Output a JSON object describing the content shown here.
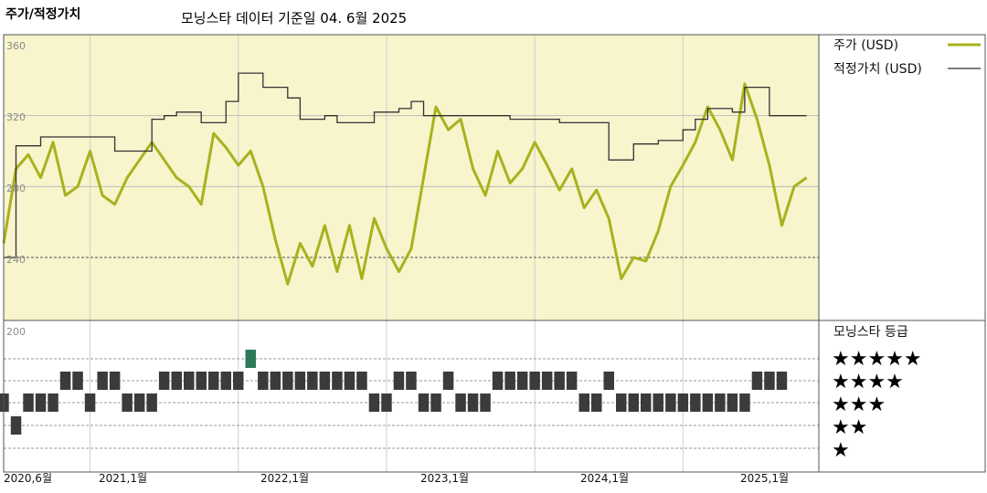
{
  "header": {
    "title": "주가/적정가치",
    "subtitle": "모닝스타 데이터 기준일 04. 6월 2025"
  },
  "colors": {
    "price": "#a8b21e",
    "fair_value": "#333333",
    "plot_bg": "#f8f4cc",
    "rating_bar": "#3b3b3b",
    "rating_highlight": "#2d7a5a"
  },
  "chart_data": [
    {
      "type": "line",
      "title": "",
      "ylim": [
        200,
        360
      ],
      "y_ticks": [
        "360",
        "320",
        "280",
        "240",
        "200"
      ],
      "x_ticks": [
        "2020,6월",
        "2021,1월",
        "2022,1월",
        "2023,1월",
        "2024,1월",
        "2025,1월"
      ],
      "grid": true,
      "legend": "top-right",
      "series": [
        {
          "name": "주가 (USD)",
          "points": [
            [
              "2020-06",
              248
            ],
            [
              "2020-07",
              290
            ],
            [
              "2020-08",
              298
            ],
            [
              "2020-09",
              285
            ],
            [
              "2020-10",
              305
            ],
            [
              "2020-11",
              275
            ],
            [
              "2020-12",
              280
            ],
            [
              "2021-01",
              300
            ],
            [
              "2021-02",
              275
            ],
            [
              "2021-03",
              270
            ],
            [
              "2021-04",
              285
            ],
            [
              "2021-05",
              295
            ],
            [
              "2021-06",
              305
            ],
            [
              "2021-07",
              295
            ],
            [
              "2021-08",
              285
            ],
            [
              "2021-09",
              280
            ],
            [
              "2021-10",
              270
            ],
            [
              "2021-11",
              310
            ],
            [
              "2021-12",
              302
            ],
            [
              "2022-01",
              292
            ],
            [
              "2022-02",
              300
            ],
            [
              "2022-03",
              280
            ],
            [
              "2022-04",
              250
            ],
            [
              "2022-05",
              225
            ],
            [
              "2022-06",
              248
            ],
            [
              "2022-07",
              235
            ],
            [
              "2022-08",
              258
            ],
            [
              "2022-09",
              232
            ],
            [
              "2022-10",
              258
            ],
            [
              "2022-11",
              228
            ],
            [
              "2022-12",
              262
            ],
            [
              "2023-01",
              245
            ],
            [
              "2023-02",
              232
            ],
            [
              "2023-03",
              245
            ],
            [
              "2023-04",
              285
            ],
            [
              "2023-05",
              325
            ],
            [
              "2023-06",
              312
            ],
            [
              "2023-07",
              318
            ],
            [
              "2023-08",
              290
            ],
            [
              "2023-09",
              275
            ],
            [
              "2023-10",
              300
            ],
            [
              "2023-11",
              282
            ],
            [
              "2023-12",
              290
            ],
            [
              "2024-01",
              305
            ],
            [
              "2024-02",
              292
            ],
            [
              "2024-03",
              278
            ],
            [
              "2024-04",
              290
            ],
            [
              "2024-05",
              268
            ],
            [
              "2024-06",
              278
            ],
            [
              "2024-07",
              262
            ],
            [
              "2024-08",
              228
            ],
            [
              "2024-09",
              240
            ],
            [
              "2024-10",
              238
            ],
            [
              "2024-11",
              255
            ],
            [
              "2024-12",
              280
            ],
            [
              "2025-01",
              292
            ],
            [
              "2025-02",
              305
            ],
            [
              "2025-03",
              325
            ],
            [
              "2025-04",
              312
            ],
            [
              "2025-05",
              295
            ],
            [
              "2025-06",
              338
            ],
            [
              "2025-07",
              318
            ],
            [
              "2025-08",
              292
            ],
            [
              "2025-09",
              258
            ],
            [
              "2025-10",
              280
            ],
            [
              "2025-11",
              285
            ]
          ]
        },
        {
          "name": "적정가치 (USD)",
          "step": true,
          "points": [
            [
              "2020-06",
              240
            ],
            [
              "2020-07",
              303
            ],
            [
              "2020-09",
              308
            ],
            [
              "2021-01",
              308
            ],
            [
              "2021-03",
              300
            ],
            [
              "2021-06",
              318
            ],
            [
              "2021-07",
              320
            ],
            [
              "2021-08",
              322
            ],
            [
              "2021-10",
              316
            ],
            [
              "2021-12",
              328
            ],
            [
              "2022-01",
              344
            ],
            [
              "2022-03",
              336
            ],
            [
              "2022-05",
              330
            ],
            [
              "2022-06",
              318
            ],
            [
              "2022-08",
              320
            ],
            [
              "2022-09",
              316
            ],
            [
              "2022-12",
              322
            ],
            [
              "2023-02",
              324
            ],
            [
              "2023-03",
              328
            ],
            [
              "2023-04",
              320
            ],
            [
              "2023-09",
              320
            ],
            [
              "2023-11",
              318
            ],
            [
              "2024-01",
              318
            ],
            [
              "2024-03",
              316
            ],
            [
              "2024-06",
              316
            ],
            [
              "2024-07",
              295
            ],
            [
              "2024-09",
              304
            ],
            [
              "2024-11",
              306
            ],
            [
              "2025-01",
              312
            ],
            [
              "2025-02",
              318
            ],
            [
              "2025-03",
              324
            ],
            [
              "2025-05",
              322
            ],
            [
              "2025-06",
              336
            ],
            [
              "2025-08",
              320
            ],
            [
              "2025-11",
              320
            ]
          ]
        }
      ]
    },
    {
      "type": "bar",
      "title": "모닝스타 등급",
      "y_ticks": [
        "200"
      ],
      "legend": "right",
      "rating_levels": [
        "★★★★★",
        "★★★★",
        "★★★",
        "★★",
        "★"
      ],
      "rating_history": [
        [
          "2020-06",
          3
        ],
        [
          "2020-07",
          2
        ],
        [
          "2020-08",
          3
        ],
        [
          "2020-09",
          3
        ],
        [
          "2020-10",
          3
        ],
        [
          "2020-11",
          4
        ],
        [
          "2020-12",
          4
        ],
        [
          "2021-01",
          3
        ],
        [
          "2021-02",
          4
        ],
        [
          "2021-03",
          4
        ],
        [
          "2021-04",
          3
        ],
        [
          "2021-05",
          3
        ],
        [
          "2021-06",
          3
        ],
        [
          "2021-07",
          4
        ],
        [
          "2021-08",
          4
        ],
        [
          "2021-09",
          4
        ],
        [
          "2021-10",
          4
        ],
        [
          "2021-11",
          4
        ],
        [
          "2021-12",
          4
        ],
        [
          "2022-01",
          4
        ],
        [
          "2022-02",
          5
        ],
        [
          "2022-03",
          4
        ],
        [
          "2022-04",
          4
        ],
        [
          "2022-05",
          4
        ],
        [
          "2022-06",
          4
        ],
        [
          "2022-07",
          4
        ],
        [
          "2022-08",
          4
        ],
        [
          "2022-09",
          4
        ],
        [
          "2022-10",
          4
        ],
        [
          "2022-11",
          4
        ],
        [
          "2022-12",
          3
        ],
        [
          "2023-01",
          3
        ],
        [
          "2023-02",
          4
        ],
        [
          "2023-03",
          4
        ],
        [
          "2023-04",
          3
        ],
        [
          "2023-05",
          3
        ],
        [
          "2023-06",
          4
        ],
        [
          "2023-07",
          3
        ],
        [
          "2023-08",
          3
        ],
        [
          "2023-09",
          3
        ],
        [
          "2023-10",
          4
        ],
        [
          "2023-11",
          4
        ],
        [
          "2023-12",
          4
        ],
        [
          "2024-01",
          4
        ],
        [
          "2024-02",
          4
        ],
        [
          "2024-03",
          4
        ],
        [
          "2024-04",
          4
        ],
        [
          "2024-05",
          3
        ],
        [
          "2024-06",
          3
        ],
        [
          "2024-07",
          4
        ],
        [
          "2024-08",
          3
        ],
        [
          "2024-09",
          3
        ],
        [
          "2024-10",
          3
        ],
        [
          "2024-11",
          3
        ],
        [
          "2024-12",
          3
        ],
        [
          "2025-01",
          3
        ],
        [
          "2025-02",
          3
        ],
        [
          "2025-03",
          3
        ],
        [
          "2025-04",
          3
        ],
        [
          "2025-05",
          3
        ],
        [
          "2025-06",
          3
        ],
        [
          "2025-07",
          4
        ],
        [
          "2025-08",
          4
        ],
        [
          "2025-09",
          4
        ]
      ]
    }
  ]
}
